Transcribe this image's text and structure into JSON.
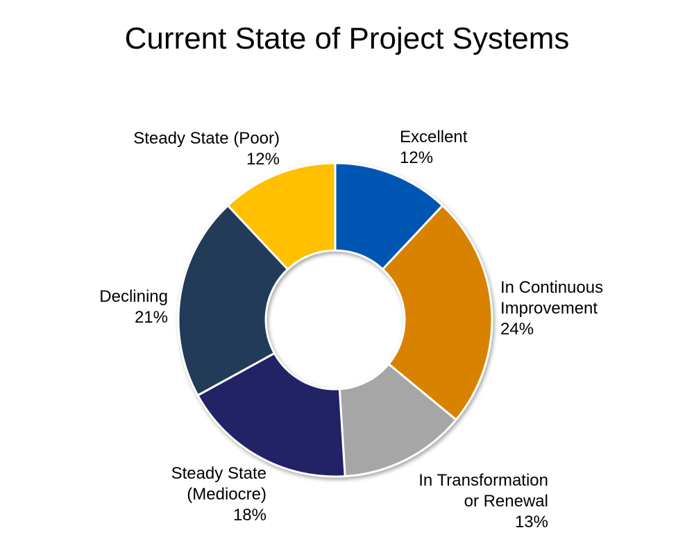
{
  "chart_data": {
    "type": "pie",
    "title": "Current State of Project Systems",
    "slices": [
      {
        "label_lines": [
          "Excellent"
        ],
        "value": 12,
        "value_label": "12%",
        "color": "#0057b3"
      },
      {
        "label_lines": [
          "In Continuous",
          "Improvement"
        ],
        "value": 24,
        "value_label": "24%",
        "color": "#d98200"
      },
      {
        "label_lines": [
          "In Transformation",
          "or Renewal"
        ],
        "value": 13,
        "value_label": "13%",
        "color": "#a6a6a6"
      },
      {
        "label_lines": [
          "Steady State",
          "(Mediocre)"
        ],
        "value": 18,
        "value_label": "18%",
        "color": "#232366"
      },
      {
        "label_lines": [
          "Declining"
        ],
        "value": 21,
        "value_label": "21%",
        "color": "#213a58"
      },
      {
        "label_lines": [
          "Steady State (Poor)"
        ],
        "value": 12,
        "value_label": "12%",
        "color": "#ffc000"
      }
    ]
  }
}
